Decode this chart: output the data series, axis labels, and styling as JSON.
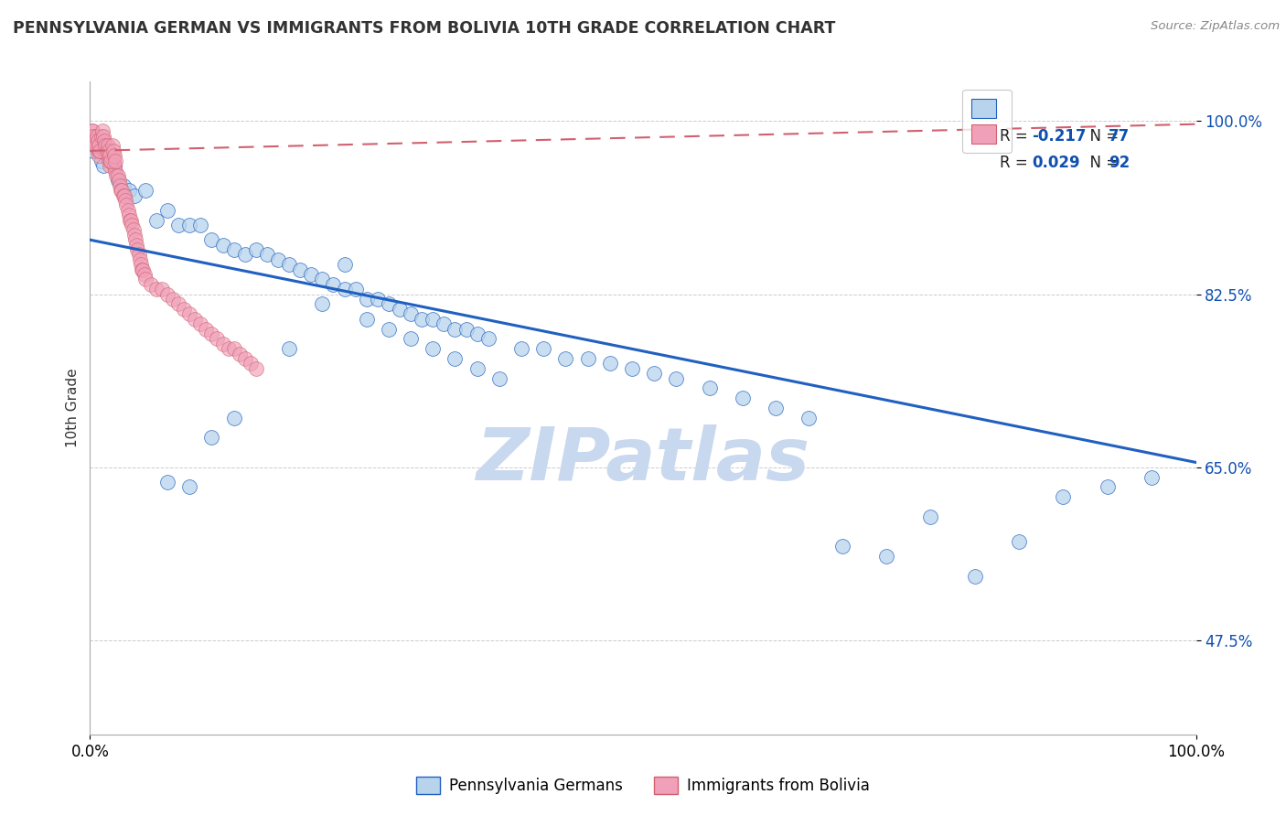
{
  "title": "PENNSYLVANIA GERMAN VS IMMIGRANTS FROM BOLIVIA 10TH GRADE CORRELATION CHART",
  "source_text": "Source: ZipAtlas.com",
  "ylabel": "10th Grade",
  "xlim": [
    0,
    1
  ],
  "ylim": [
    0.38,
    1.04
  ],
  "yticks": [
    0.475,
    0.65,
    0.825,
    1.0
  ],
  "ytick_labels": [
    "47.5%",
    "65.0%",
    "82.5%",
    "100.0%"
  ],
  "xtick_labels": [
    "0.0%",
    "100.0%"
  ],
  "legend_r_blue": "R = -0.217",
  "legend_n_blue": "N = 77",
  "legend_r_pink": "R =  0.029",
  "legend_n_pink": "N = 92",
  "blue_color": "#b8d4ec",
  "pink_color": "#f0a0b8",
  "trend_blue_color": "#2060c0",
  "trend_pink_color": "#d06070",
  "r_value_color": "#1050b0",
  "background_color": "#ffffff",
  "watermark_color": "#c8d8ee",
  "blue_trend_x0": 0.0,
  "blue_trend_y0": 0.88,
  "blue_trend_x1": 1.0,
  "blue_trend_y1": 0.655,
  "pink_trend_x0": 0.0,
  "pink_trend_y0": 0.97,
  "pink_trend_x1": 1.0,
  "pink_trend_y1": 0.997,
  "blue_points_x": [
    0.003,
    0.008,
    0.01,
    0.012,
    0.015,
    0.018,
    0.022,
    0.025,
    0.03,
    0.035,
    0.04,
    0.05,
    0.06,
    0.07,
    0.08,
    0.09,
    0.1,
    0.11,
    0.12,
    0.13,
    0.14,
    0.15,
    0.16,
    0.17,
    0.18,
    0.19,
    0.2,
    0.21,
    0.22,
    0.23,
    0.24,
    0.25,
    0.26,
    0.27,
    0.28,
    0.29,
    0.3,
    0.31,
    0.32,
    0.33,
    0.34,
    0.35,
    0.36,
    0.39,
    0.41,
    0.43,
    0.45,
    0.47,
    0.49,
    0.51,
    0.53,
    0.56,
    0.59,
    0.62,
    0.65,
    0.68,
    0.72,
    0.76,
    0.8,
    0.84,
    0.88,
    0.92,
    0.96,
    0.07,
    0.09,
    0.11,
    0.13,
    0.18,
    0.21,
    0.23,
    0.25,
    0.27,
    0.29,
    0.31,
    0.33,
    0.35,
    0.37
  ],
  "blue_points_y": [
    0.97,
    0.97,
    0.96,
    0.955,
    0.97,
    0.96,
    0.955,
    0.94,
    0.935,
    0.93,
    0.925,
    0.93,
    0.9,
    0.91,
    0.895,
    0.895,
    0.895,
    0.88,
    0.875,
    0.87,
    0.865,
    0.87,
    0.865,
    0.86,
    0.855,
    0.85,
    0.845,
    0.84,
    0.835,
    0.83,
    0.83,
    0.82,
    0.82,
    0.815,
    0.81,
    0.805,
    0.8,
    0.8,
    0.795,
    0.79,
    0.79,
    0.785,
    0.78,
    0.77,
    0.77,
    0.76,
    0.76,
    0.755,
    0.75,
    0.745,
    0.74,
    0.73,
    0.72,
    0.71,
    0.7,
    0.57,
    0.56,
    0.6,
    0.54,
    0.575,
    0.62,
    0.63,
    0.64,
    0.635,
    0.63,
    0.68,
    0.7,
    0.77,
    0.815,
    0.855,
    0.8,
    0.79,
    0.78,
    0.77,
    0.76,
    0.75,
    0.74
  ],
  "pink_points_x": [
    0.001,
    0.002,
    0.003,
    0.004,
    0.005,
    0.006,
    0.007,
    0.008,
    0.009,
    0.01,
    0.011,
    0.012,
    0.013,
    0.014,
    0.015,
    0.016,
    0.017,
    0.018,
    0.019,
    0.02,
    0.021,
    0.022,
    0.023,
    0.024,
    0.025,
    0.026,
    0.027,
    0.028,
    0.029,
    0.03,
    0.031,
    0.032,
    0.033,
    0.034,
    0.035,
    0.036,
    0.037,
    0.038,
    0.039,
    0.04,
    0.041,
    0.042,
    0.043,
    0.044,
    0.045,
    0.046,
    0.047,
    0.048,
    0.049,
    0.05,
    0.055,
    0.06,
    0.065,
    0.07,
    0.075,
    0.08,
    0.085,
    0.09,
    0.095,
    0.1,
    0.105,
    0.11,
    0.115,
    0.12,
    0.125,
    0.13,
    0.135,
    0.14,
    0.145,
    0.15,
    0.002,
    0.003,
    0.004,
    0.005,
    0.006,
    0.007,
    0.008,
    0.009,
    0.01,
    0.011,
    0.012,
    0.013,
    0.014,
    0.015,
    0.016,
    0.017,
    0.018,
    0.019,
    0.02,
    0.021,
    0.022,
    0.023
  ],
  "pink_points_y": [
    0.985,
    0.99,
    0.985,
    0.98,
    0.975,
    0.975,
    0.97,
    0.965,
    0.97,
    0.975,
    0.98,
    0.975,
    0.97,
    0.975,
    0.97,
    0.965,
    0.96,
    0.955,
    0.96,
    0.965,
    0.96,
    0.955,
    0.95,
    0.945,
    0.945,
    0.94,
    0.935,
    0.93,
    0.93,
    0.925,
    0.925,
    0.92,
    0.915,
    0.91,
    0.905,
    0.9,
    0.9,
    0.895,
    0.89,
    0.885,
    0.88,
    0.875,
    0.87,
    0.865,
    0.86,
    0.855,
    0.85,
    0.85,
    0.845,
    0.84,
    0.835,
    0.83,
    0.83,
    0.825,
    0.82,
    0.815,
    0.81,
    0.805,
    0.8,
    0.795,
    0.79,
    0.785,
    0.78,
    0.775,
    0.77,
    0.77,
    0.765,
    0.76,
    0.755,
    0.75,
    0.99,
    0.985,
    0.98,
    0.975,
    0.985,
    0.98,
    0.975,
    0.97,
    0.985,
    0.99,
    0.985,
    0.98,
    0.975,
    0.97,
    0.975,
    0.97,
    0.965,
    0.96,
    0.975,
    0.97,
    0.965,
    0.96
  ]
}
